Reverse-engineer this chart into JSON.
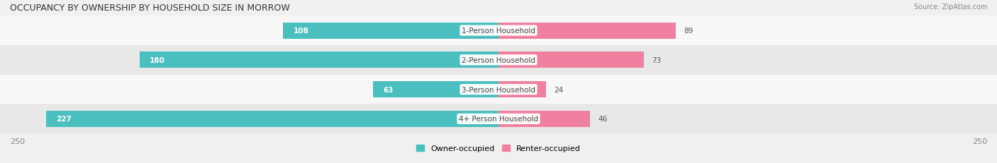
{
  "title": "OCCUPANCY BY OWNERSHIP BY HOUSEHOLD SIZE IN MORROW",
  "source": "Source: ZipAtlas.com",
  "categories": [
    "1-Person Household",
    "2-Person Household",
    "3-Person Household",
    "4+ Person Household"
  ],
  "owner_values": [
    108,
    180,
    63,
    227
  ],
  "renter_values": [
    89,
    73,
    24,
    46
  ],
  "max_val": 250,
  "owner_color": "#4BBFBF",
  "renter_color": "#F080A0",
  "bg_color": "#f0f0f0",
  "title_color": "#333333",
  "axis_label_color": "#888888",
  "center_label_color": "#555555",
  "legend_owner": "Owner-occupied",
  "legend_renter": "Renter-occupied",
  "row_colors": [
    "#f7f7f7",
    "#e8e8e8",
    "#f7f7f7",
    "#e8e8e8"
  ]
}
